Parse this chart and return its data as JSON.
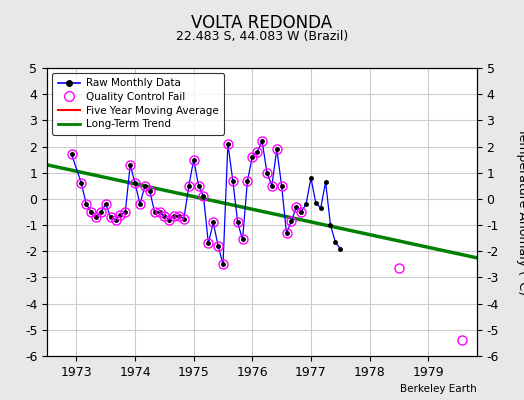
{
  "title": "VOLTA REDONDA",
  "subtitle": "22.483 S, 44.083 W (Brazil)",
  "ylabel": "Temperature Anomaly (°C)",
  "credit": "Berkeley Earth",
  "ylim": [
    -6,
    5
  ],
  "yticks": [
    -6,
    -5,
    -4,
    -3,
    -2,
    -1,
    0,
    1,
    2,
    3,
    4,
    5
  ],
  "xlim": [
    1972.5,
    1979.83
  ],
  "xticks": [
    1973,
    1974,
    1975,
    1976,
    1977,
    1978,
    1979
  ],
  "bg_color": "#e8e8e8",
  "plot_bg_color": "#ffffff",
  "raw_x": [
    1972.917,
    1973.083,
    1973.167,
    1973.25,
    1973.333,
    1973.417,
    1973.5,
    1973.583,
    1973.667,
    1973.75,
    1973.833,
    1973.917,
    1974.0,
    1974.083,
    1974.167,
    1974.25,
    1974.333,
    1974.417,
    1974.5,
    1974.583,
    1974.667,
    1974.75,
    1974.833,
    1974.917,
    1975.0,
    1975.083,
    1975.167,
    1975.25,
    1975.333,
    1975.417,
    1975.5,
    1975.583,
    1975.667,
    1975.75,
    1975.833,
    1975.917,
    1976.0,
    1976.083,
    1976.167,
    1976.25,
    1976.333,
    1976.417,
    1976.5,
    1976.583,
    1976.667,
    1976.75,
    1976.833,
    1976.917,
    1977.0,
    1977.083,
    1977.167,
    1977.25,
    1977.333,
    1977.417,
    1977.5
  ],
  "raw_y": [
    1.7,
    0.6,
    -0.2,
    -0.5,
    -0.7,
    -0.5,
    -0.2,
    -0.7,
    -0.8,
    -0.6,
    -0.5,
    1.3,
    0.6,
    -0.2,
    0.5,
    0.3,
    -0.5,
    -0.5,
    -0.65,
    -0.8,
    -0.65,
    -0.65,
    -0.75,
    0.5,
    1.5,
    0.5,
    0.1,
    -1.7,
    -0.9,
    -1.8,
    -2.5,
    2.1,
    0.7,
    -0.9,
    -1.55,
    0.7,
    1.6,
    1.8,
    2.2,
    1.0,
    0.5,
    1.9,
    0.5,
    -1.3,
    -0.85,
    -0.3,
    -0.5,
    -0.2,
    0.8,
    -0.15,
    -0.35,
    0.65,
    -1.0,
    -1.65,
    -1.9
  ],
  "qc_fail_x": [
    1972.917,
    1973.083,
    1973.167,
    1973.25,
    1973.333,
    1973.417,
    1973.5,
    1973.583,
    1973.667,
    1973.75,
    1973.833,
    1973.917,
    1974.0,
    1974.083,
    1974.167,
    1974.25,
    1974.333,
    1974.417,
    1974.5,
    1974.583,
    1974.667,
    1974.75,
    1974.833,
    1974.917,
    1975.0,
    1975.083,
    1975.167,
    1975.25,
    1975.333,
    1975.417,
    1975.5,
    1975.583,
    1975.667,
    1975.75,
    1975.833,
    1975.917,
    1976.0,
    1976.083,
    1976.167,
    1976.25,
    1976.333,
    1976.417,
    1976.5,
    1976.583,
    1976.667,
    1976.75,
    1976.833,
    1978.5,
    1979.583
  ],
  "qc_fail_y": [
    1.7,
    0.6,
    -0.2,
    -0.5,
    -0.7,
    -0.5,
    -0.2,
    -0.7,
    -0.8,
    -0.6,
    -0.5,
    1.3,
    0.6,
    -0.2,
    0.5,
    0.3,
    -0.5,
    -0.5,
    -0.65,
    -0.8,
    -0.65,
    -0.65,
    -0.75,
    0.5,
    1.5,
    0.5,
    0.1,
    -1.7,
    -0.9,
    -1.8,
    -2.5,
    2.1,
    0.7,
    -0.9,
    -1.55,
    0.7,
    1.6,
    1.8,
    2.2,
    1.0,
    0.5,
    1.9,
    0.5,
    -1.3,
    -0.85,
    -0.3,
    -0.5,
    -2.65,
    -5.4
  ],
  "trend_x": [
    1972.5,
    1979.83
  ],
  "trend_y": [
    1.3,
    -2.25
  ],
  "grid_color": "#cccccc"
}
